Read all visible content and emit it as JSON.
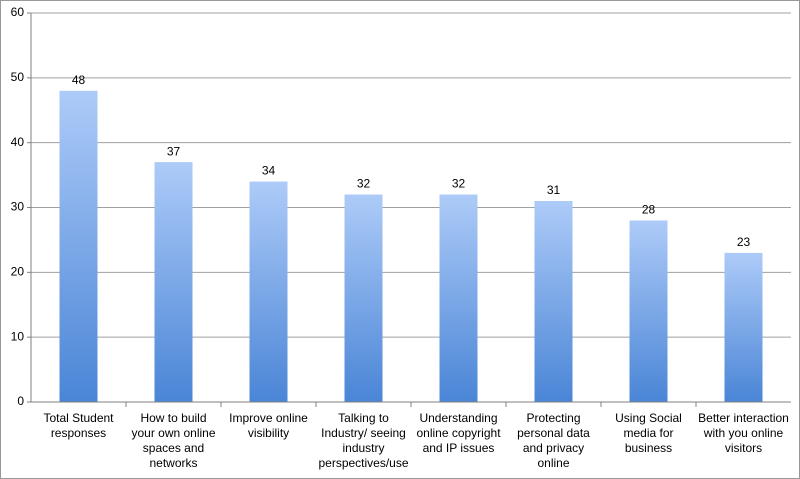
{
  "chart_data": {
    "type": "bar",
    "categories": [
      "Total Student responses",
      "How to build your own online spaces and networks",
      "Improve online visibility",
      "Talking to Industry/ seeing industry perspectives/use",
      "Understanding online copyright and IP issues",
      "Protecting personal data and privacy online",
      "Using Social media for business",
      "Better interaction with you online visitors"
    ],
    "values": [
      48,
      37,
      34,
      32,
      32,
      31,
      28,
      23
    ],
    "color": "#4a85d6",
    "ylim": [
      0,
      60
    ],
    "yticks": [
      0,
      10,
      20,
      30,
      40,
      50,
      60
    ],
    "grid": true
  }
}
